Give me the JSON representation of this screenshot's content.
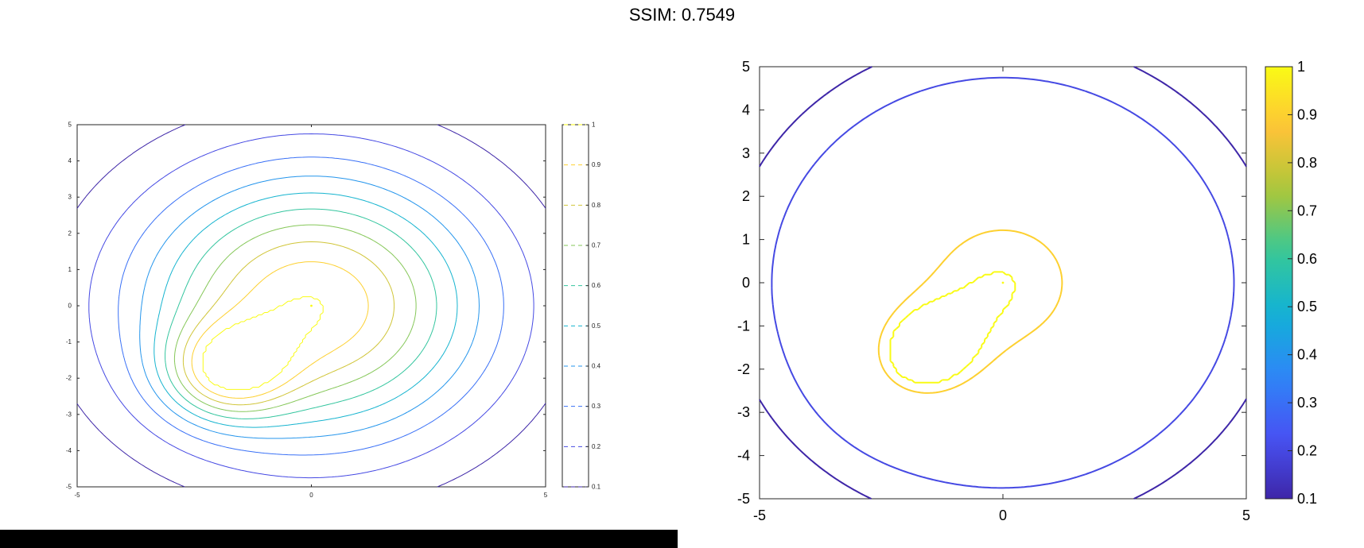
{
  "title": "SSIM: 0.7549",
  "chart_data": [
    {
      "type": "contour",
      "xlim": [
        -5,
        5
      ],
      "ylim": [
        -5,
        5
      ],
      "x_ticks": [
        "-5",
        "0",
        "5"
      ],
      "y_ticks": [
        "5",
        "4",
        "3",
        "2",
        "1",
        "0",
        "-1",
        "-2",
        "-3",
        "-4",
        "-5"
      ],
      "colorbar": {
        "range": [
          0.1,
          1
        ],
        "ticks": [
          "1",
          "0.9",
          "0.8",
          "0.7",
          "0.6",
          "0.5",
          "0.4",
          "0.3",
          "0.2",
          "0.1"
        ],
        "line_legend": true
      },
      "levels": [
        0.1,
        0.2,
        0.3,
        0.4,
        0.5,
        0.6,
        0.7,
        0.8,
        0.9,
        1.0
      ],
      "line_style": "dashed",
      "peaks": [
        {
          "x": 0,
          "y": 0
        },
        {
          "x": -1.8,
          "y": -1.8
        }
      ]
    },
    {
      "type": "contour",
      "xlim": [
        -5,
        5
      ],
      "ylim": [
        -5,
        5
      ],
      "x_ticks": [
        "-5",
        "0",
        "5"
      ],
      "y_ticks": [
        "5",
        "4",
        "3",
        "2",
        "1",
        "0",
        "-1",
        "-2",
        "-3",
        "-4",
        "-5"
      ],
      "colorbar": {
        "range": [
          0.1,
          1
        ],
        "ticks": [
          "1",
          "0.9",
          "0.8",
          "0.7",
          "0.6",
          "0.5",
          "0.4",
          "0.3",
          "0.2",
          "0.1"
        ],
        "line_legend": false
      },
      "levels": [
        0.1,
        0.2,
        0.9,
        1.0
      ],
      "line_style": "dashed",
      "peaks": [
        {
          "x": 0,
          "y": 0
        },
        {
          "x": -1.8,
          "y": -1.8
        }
      ]
    }
  ]
}
